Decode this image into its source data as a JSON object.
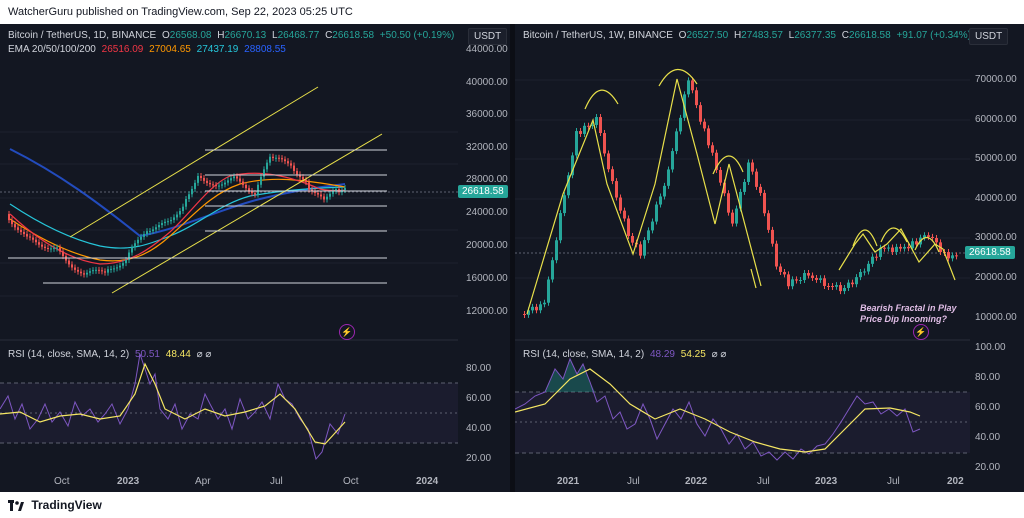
{
  "header": {
    "publisher_text": "WatcherGuru published on TradingView.com, Sep 22, 2023 05:25 UTC"
  },
  "footer": {
    "brand": "TradingView"
  },
  "left_chart": {
    "title": "Bitcoin / TetherUS, 1D, BINANCE",
    "ohlc": {
      "o_label": "O",
      "o": "26568.08",
      "h_label": "H",
      "h": "26670.13",
      "l_label": "L",
      "l": "26468.77",
      "c_label": "C",
      "c": "26618.58",
      "change": "+50.50 (+0.19%)"
    },
    "ema_label": "EMA 20/50/100/200",
    "ema_values": [
      "26516.09",
      "27004.65",
      "27437.19",
      "28808.55"
    ],
    "currency": "USDT",
    "last_price": "26618.58",
    "price_ticks": [
      "44000.00",
      "40000.00",
      "36000.00",
      "32000.00",
      "28000.00",
      "24000.00",
      "20000.00",
      "16000.00",
      "12000.00"
    ],
    "time_ticks": [
      "Oct",
      "2023",
      "Apr",
      "Jul",
      "Oct",
      "2024"
    ],
    "rsi_label": "RSI (14, close, SMA, 14, 2)",
    "rsi_values": [
      "50.51",
      "48.44"
    ],
    "rsi_ticks": [
      "80.00",
      "60.00",
      "40.00",
      "20.00"
    ]
  },
  "right_chart": {
    "title": "Bitcoin / TetherUS, 1W, BINANCE",
    "ohlc": {
      "o_label": "O",
      "o": "26527.50",
      "h_label": "H",
      "h": "27483.57",
      "l_label": "L",
      "l": "26377.35",
      "c_label": "C",
      "c": "26618.58",
      "change": "+91.07 (+0.34%)"
    },
    "currency": "USDT",
    "last_price": "26618.58",
    "price_ticks": [
      "70000.00",
      "60000.00",
      "50000.00",
      "40000.00",
      "30000.00",
      "20000.00",
      "10000.00"
    ],
    "time_ticks": [
      "2021",
      "Jul",
      "2022",
      "Jul",
      "2023",
      "Jul",
      "202"
    ],
    "rsi_label": "RSI (14, close, SMA, 14, 2)",
    "rsi_values": [
      "48.29",
      "54.25"
    ],
    "rsi_ticks": [
      "100.00",
      "80.00",
      "60.00",
      "40.00",
      "20.00"
    ],
    "annotation_line1": "Bearish Fractal in Play",
    "annotation_line2": "Price Dip Incoming?"
  },
  "colors": {
    "up": "#26a69a",
    "down": "#ef5350",
    "ema20": "#f23645",
    "ema50": "#ff9800",
    "ema100": "#26c6da",
    "ema200": "#2962ff",
    "rsi": "#7e57c2",
    "rsi_ma": "#f5e663",
    "fractal": "#e8e04a",
    "bg": "#131722"
  }
}
